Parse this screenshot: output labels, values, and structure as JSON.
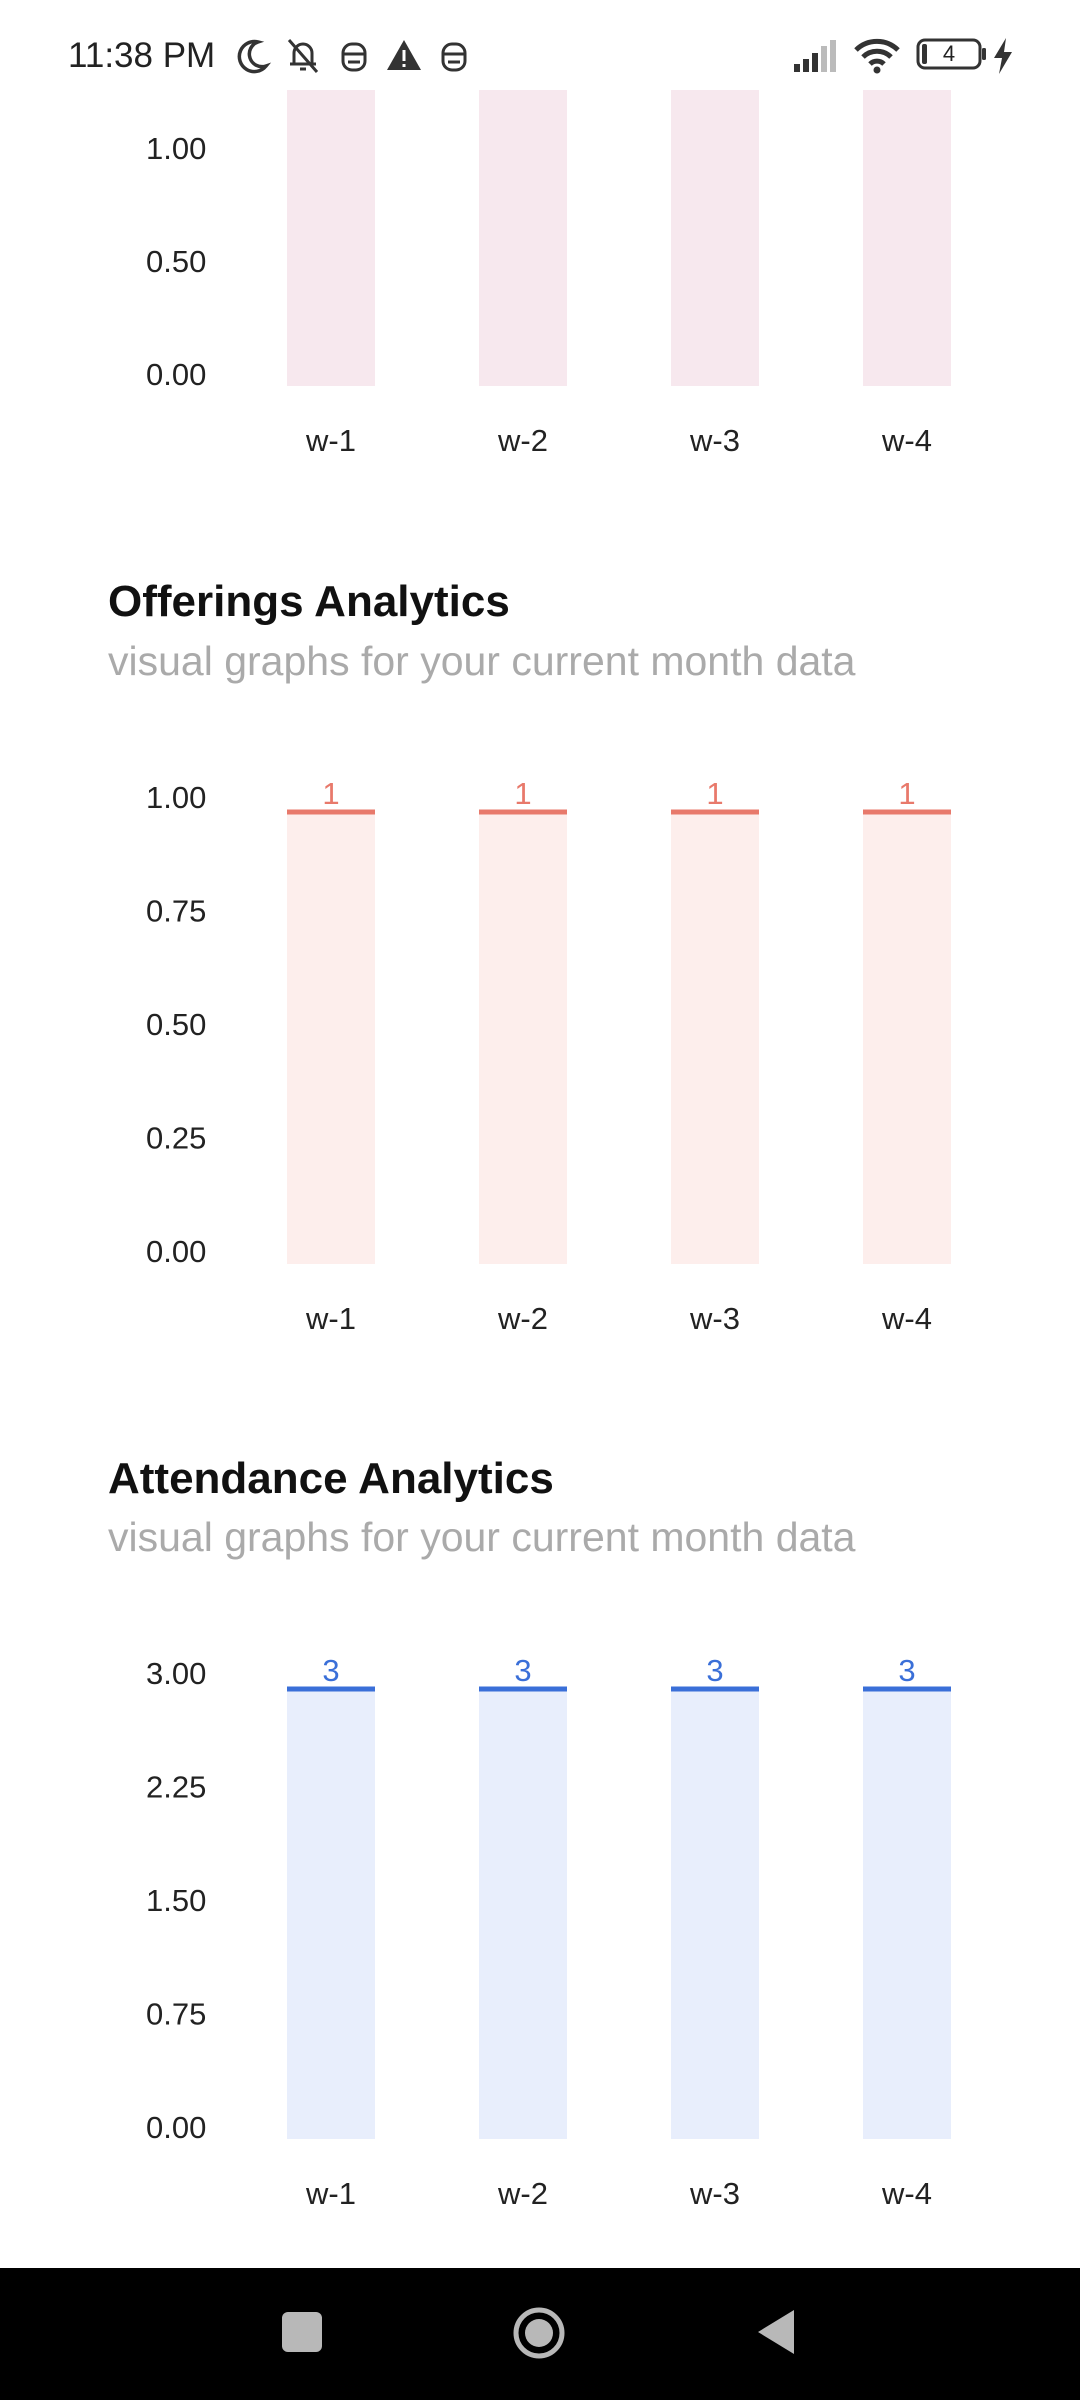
{
  "status_bar": {
    "time": "11:38 PM",
    "battery_level": "4",
    "icons": [
      "moon-icon",
      "bell-off-icon",
      "robot-icon",
      "alert-icon",
      "robot-icon",
      "signal-icon",
      "wifi-icon",
      "battery-icon",
      "charging-icon"
    ]
  },
  "sections": [
    {
      "title": "",
      "subtitle": ""
    },
    {
      "title": "Offerings Analytics",
      "subtitle": "visual graphs for your current month data"
    },
    {
      "title": "Attendance Analytics",
      "subtitle": "visual graphs for your current month data"
    }
  ],
  "chart_data": [
    {
      "type": "bar",
      "categories": [
        "w-1",
        "w-2",
        "w-3",
        "w-4"
      ],
      "values": [
        0,
        0,
        0,
        0
      ],
      "yticks": [
        "0.00",
        "0.50",
        "1.00"
      ],
      "ylim": [
        0,
        1.3
      ],
      "color": "#f7e8ee",
      "line_color": "#f7e8ee",
      "labels": [
        "",
        "",
        "",
        ""
      ]
    },
    {
      "type": "bar",
      "categories": [
        "w-1",
        "w-2",
        "w-3",
        "w-4"
      ],
      "values": [
        1,
        1,
        1,
        1
      ],
      "yticks": [
        "0.00",
        "0.25",
        "0.50",
        "0.75",
        "1.00"
      ],
      "ylim": [
        0,
        1
      ],
      "color": "#fdeeec",
      "line_color": "#e8796b",
      "labels": [
        "1",
        "1",
        "1",
        "1"
      ]
    },
    {
      "type": "bar",
      "categories": [
        "w-1",
        "w-2",
        "w-3",
        "w-4"
      ],
      "values": [
        3,
        3,
        3,
        3
      ],
      "yticks": [
        "0.00",
        "0.75",
        "1.50",
        "2.25",
        "3.00"
      ],
      "ylim": [
        0,
        3
      ],
      "color": "#e8eefc",
      "line_color": "#3a6fd8",
      "labels": [
        "3",
        "3",
        "3",
        "3"
      ]
    }
  ],
  "nav_bar": {
    "buttons": [
      "recents-button",
      "home-button",
      "back-button"
    ]
  }
}
